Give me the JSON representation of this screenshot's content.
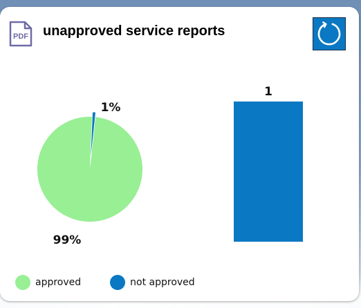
{
  "header": {
    "title": "unapproved service reports",
    "pdf_icon_text": "PDF"
  },
  "colors": {
    "approved": "#98ef94",
    "not_approved": "#0a78c2",
    "button_bg": "#0a78c2"
  },
  "icons": {
    "pdf": "pdf-icon",
    "refresh": "refresh-icon"
  },
  "chart_data": [
    {
      "type": "pie",
      "categories": [
        "approved",
        "not approved"
      ],
      "values": [
        99,
        1
      ],
      "data_labels": [
        "99%",
        "1%"
      ]
    },
    {
      "type": "bar",
      "values": [
        1
      ],
      "data_labels": [
        "1"
      ]
    }
  ],
  "legend": {
    "items": [
      {
        "label": "approved",
        "color": "#98ef94"
      },
      {
        "label": "not approved",
        "color": "#0a78c2"
      }
    ]
  }
}
